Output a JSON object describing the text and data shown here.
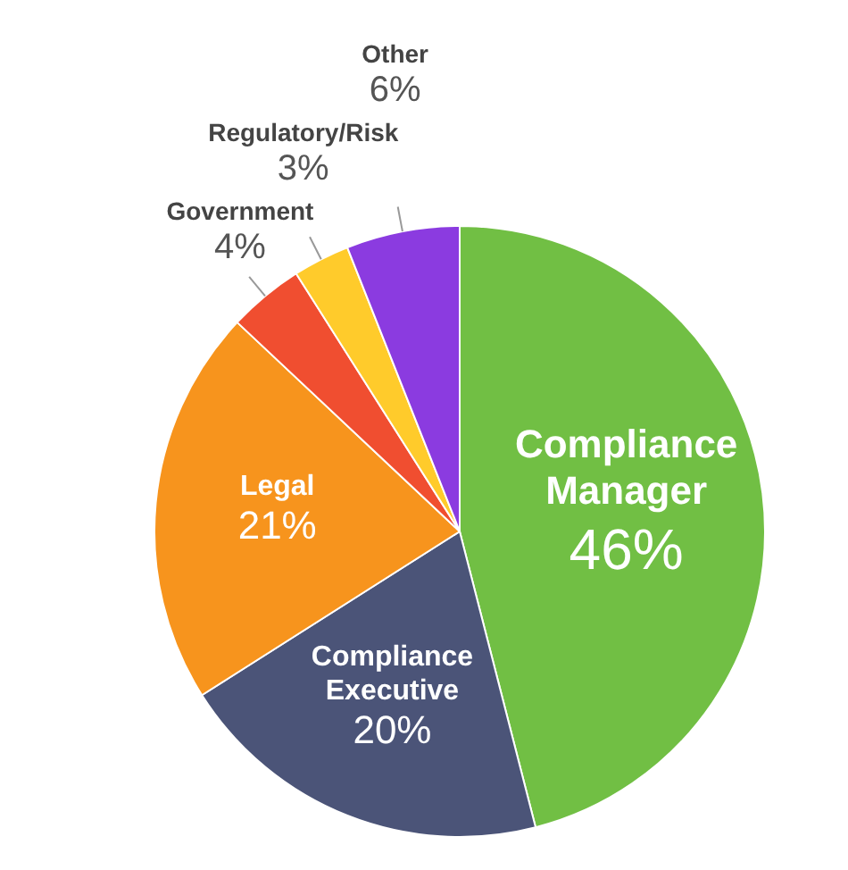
{
  "chart_data": {
    "type": "pie",
    "categories": [
      "Compliance Manager",
      "Compliance Executive",
      "Legal",
      "Government",
      "Regulatory/Risk",
      "Other"
    ],
    "values": [
      46,
      20,
      21,
      4,
      3,
      6
    ],
    "value_labels": [
      "46%",
      "20%",
      "21%",
      "4%",
      "3%",
      "6%"
    ],
    "colors": [
      "#71bf44",
      "#4b5478",
      "#f7941d",
      "#f04e30",
      "#ffcb2b",
      "#8b3be0"
    ],
    "legend": false
  }
}
